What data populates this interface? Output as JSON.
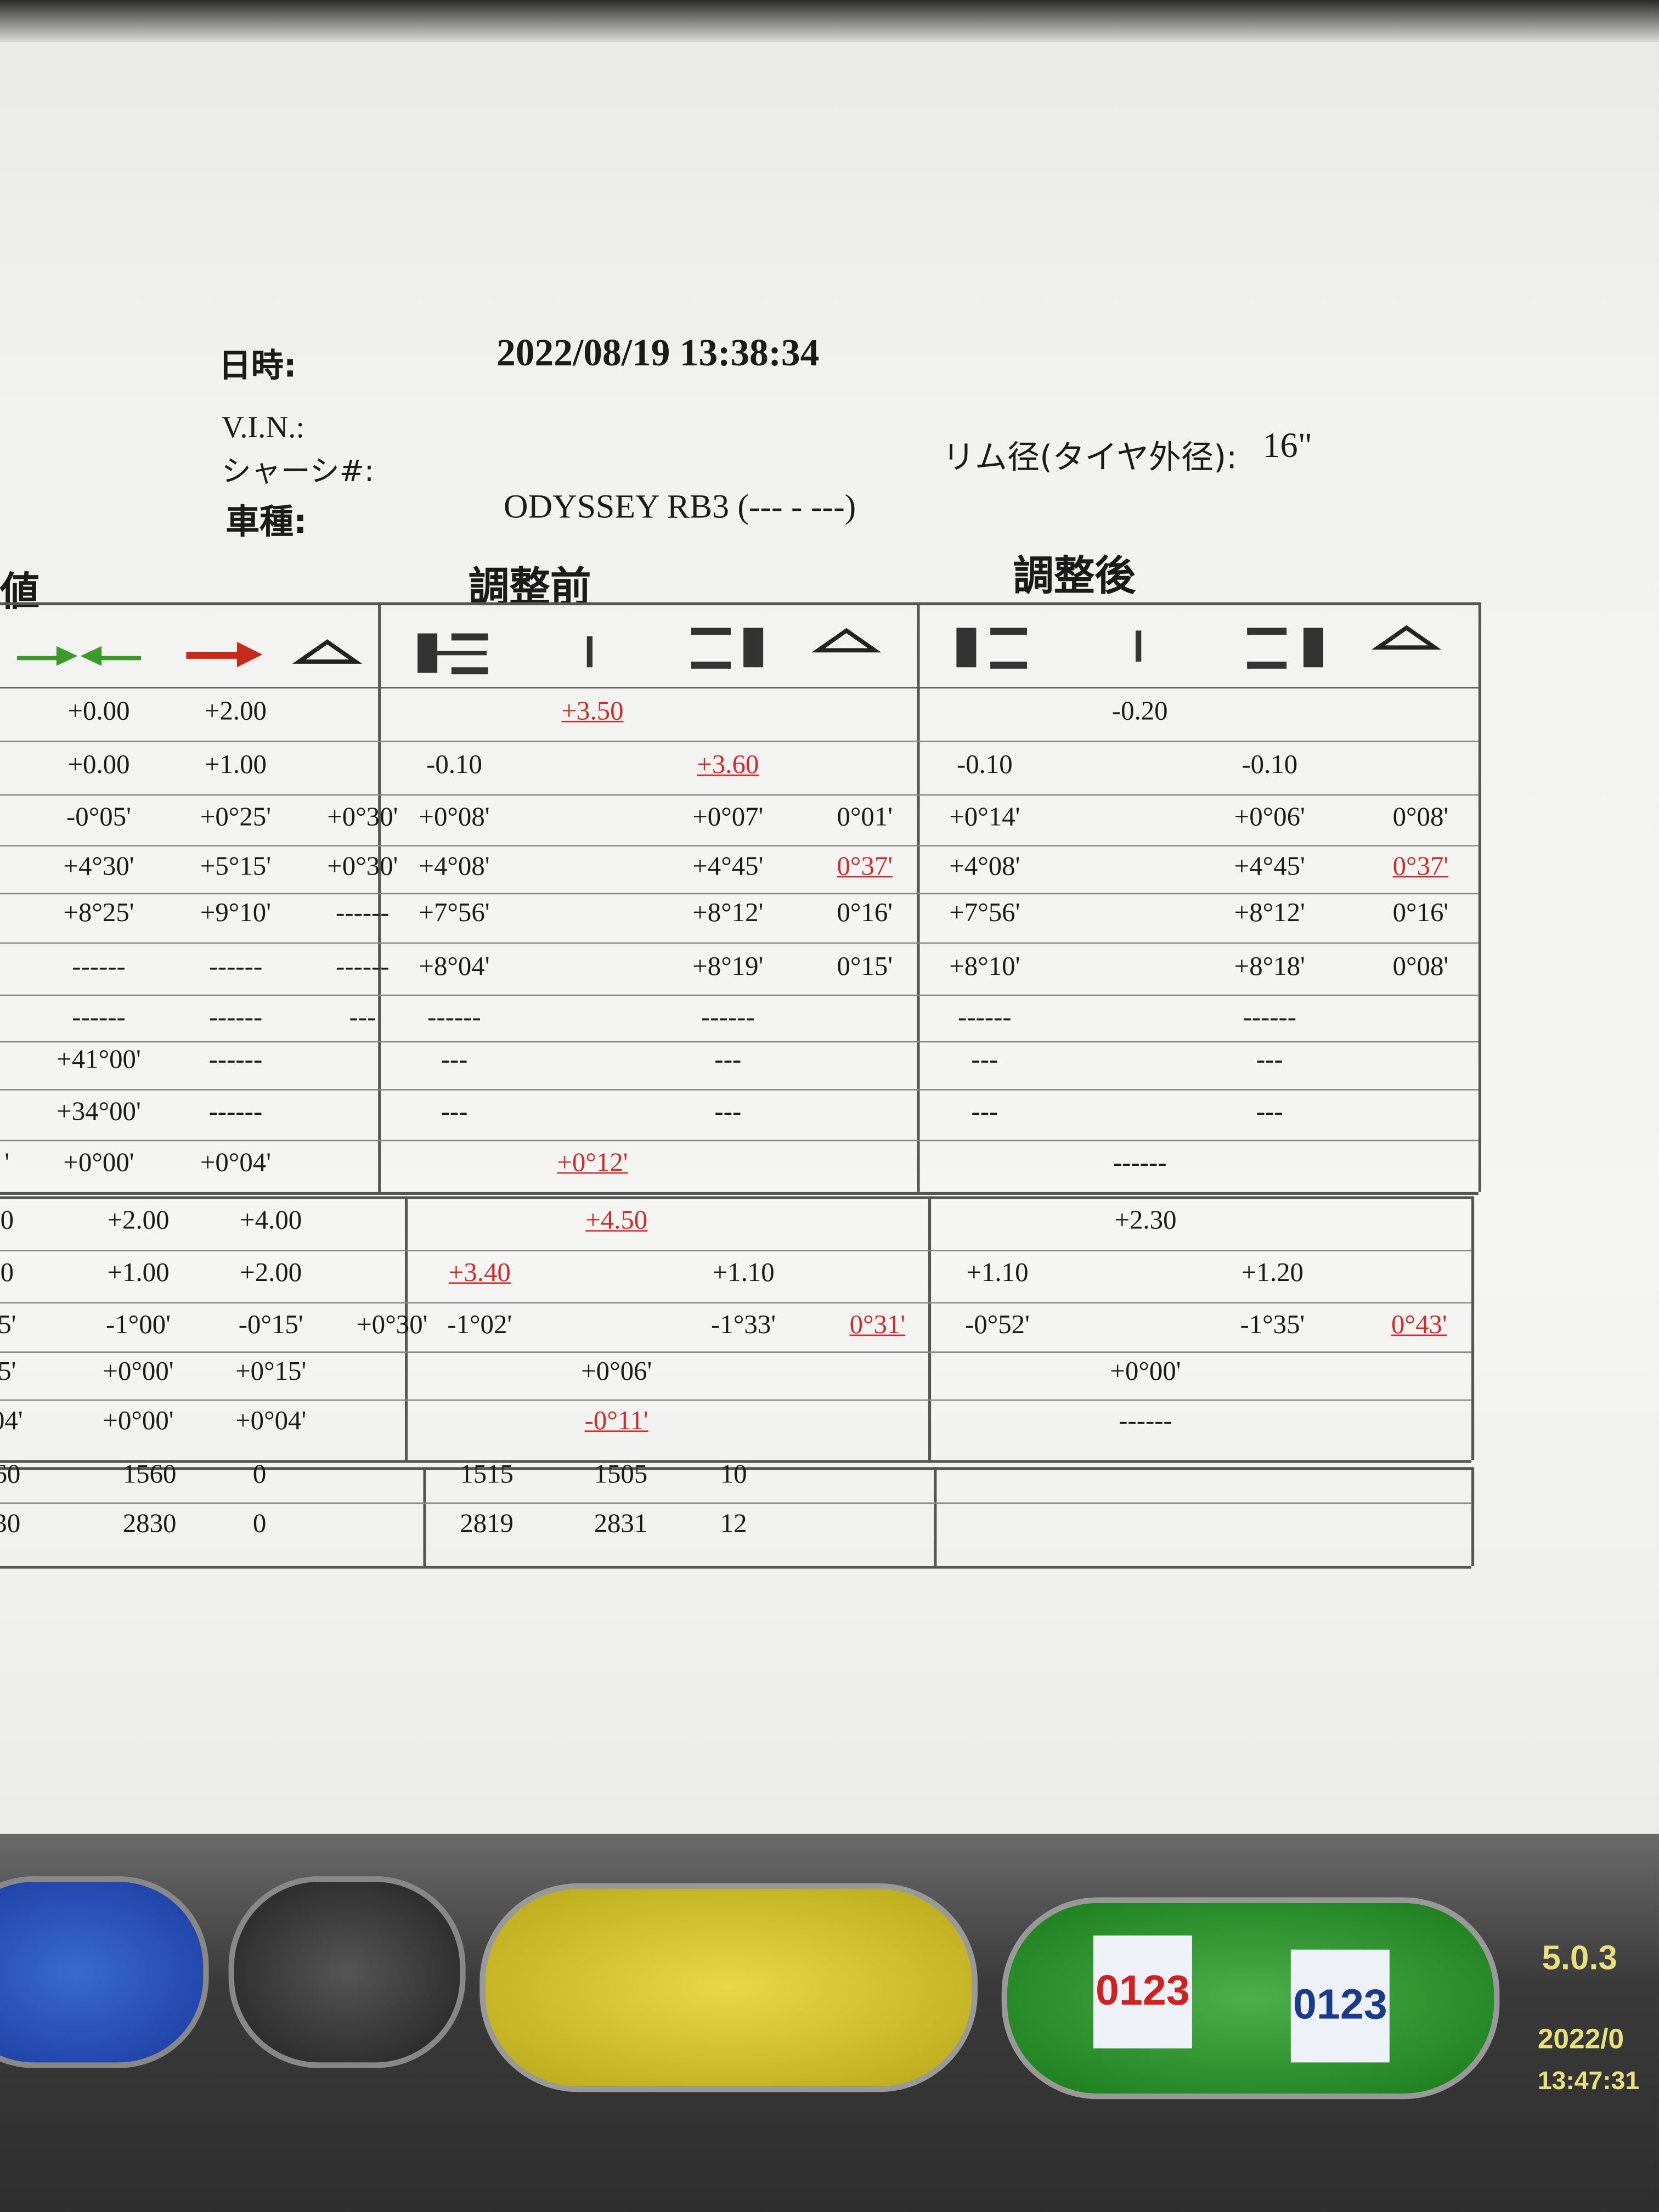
{
  "header": {
    "date_label": "日時:",
    "date_value": "2022/08/19  13:38:34",
    "vin_label": "V.I.N.:",
    "chassis_label": "シャーシ#:",
    "model_label": "車種:",
    "model_value": "ODYSSEY RB3 (--- - ---)",
    "rim_label": "リム径(タイヤ外径):",
    "rim_value": "16\""
  },
  "sections": {
    "spec": "値",
    "before": "調整前",
    "after": "調整後"
  },
  "table": {
    "groups": [
      {
        "rows": [
          {
            "spec": [
              "+0.00",
              "+2.00"
            ],
            "before": {
              "total": {
                "text": "+3.50",
                "color": "#d42a2a"
              }
            },
            "after": {
              "total": "-0.20"
            }
          },
          {
            "spec": [
              "+0.00",
              "+1.00"
            ],
            "before": {
              "left": "-0.10",
              "right": {
                "text": "+3.60",
                "color": "#d42a2a"
              }
            },
            "after": {
              "left": "-0.10",
              "right": "-0.10"
            }
          },
          {
            "spec": [
              "-0°05'",
              "+0°25'",
              "+0°30'"
            ],
            "before": {
              "left": "+0°08'",
              "right": "+0°07'",
              "diff": "0°01'"
            },
            "after": {
              "left": "+0°14'",
              "right": "+0°06'",
              "diff": "0°08'"
            }
          },
          {
            "spec": [
              "+4°30'",
              "+5°15'",
              "+0°30'"
            ],
            "before": {
              "left": "+4°08'",
              "right": "+4°45'",
              "diff": {
                "text": "0°37'",
                "color": "#d42a2a"
              }
            },
            "after": {
              "left": "+4°08'",
              "right": "+4°45'",
              "diff": {
                "text": "0°37'",
                "color": "#d42a2a"
              }
            }
          },
          {
            "spec": [
              "+8°25'",
              "+9°10'",
              "------"
            ],
            "before": {
              "left": "+7°56'",
              "right": "+8°12'",
              "diff": "0°16'"
            },
            "after": {
              "left": "+7°56'",
              "right": "+8°12'",
              "diff": "0°16'"
            }
          },
          {
            "spec": [
              "------",
              "------",
              "------"
            ],
            "before": {
              "left": "+8°04'",
              "right": "+8°19'",
              "diff": "0°15'"
            },
            "after": {
              "left": "+8°10'",
              "right": "+8°18'",
              "diff": "0°08'"
            }
          },
          {
            "spec": [
              "------",
              "------",
              "---"
            ],
            "before": {
              "left": "------",
              "right": "------"
            },
            "after": {
              "left": "------",
              "right": "------"
            }
          },
          {
            "spec": [
              "+41°00'",
              "------"
            ],
            "before": {
              "left": "---",
              "right": "---"
            },
            "after": {
              "left": "---",
              "right": "---"
            }
          },
          {
            "spec": [
              "+34°00'",
              "------"
            ],
            "before": {
              "left": "---",
              "right": "---"
            },
            "after": {
              "left": "---",
              "right": "---"
            }
          },
          {
            "cut": "'",
            "spec": [
              "+0°00'",
              "+0°04'"
            ],
            "before": {
              "total": {
                "text": "+0°12'",
                "color": "#d42a2a"
              }
            },
            "after": {
              "total": "------"
            }
          }
        ]
      },
      {
        "rows": [
          {
            "cut": "0",
            "spec": [
              "+2.00",
              "+4.00"
            ],
            "before": {
              "total": {
                "text": "+4.50",
                "color": "#d42a2a"
              }
            },
            "after": {
              "total": "+2.30"
            }
          },
          {
            "cut": "0",
            "spec": [
              "+1.00",
              "+2.00"
            ],
            "before": {
              "left": {
                "text": "+3.40",
                "color": "#d42a2a"
              },
              "right": "+1.10"
            },
            "after": {
              "left": "+1.10",
              "right": "+1.20"
            }
          },
          {
            "cut": "5'",
            "spec": [
              "-1°00'",
              "-0°15'",
              "+0°30'"
            ],
            "before": {
              "left": "-1°02'",
              "right": "-1°33'",
              "diff": {
                "text": "0°31'",
                "color": "#d42a2a"
              }
            },
            "after": {
              "left": "-0°52'",
              "right": "-1°35'",
              "diff": {
                "text": "0°43'",
                "color": "#d42a2a"
              }
            }
          },
          {
            "cut": "5'",
            "spec": [
              "+0°00'",
              "+0°15'"
            ],
            "before": {
              "total": "+0°06'"
            },
            "after": {
              "total": "+0°00'"
            }
          },
          {
            "cut": "04'",
            "spec": [
              "+0°00'",
              "+0°04'"
            ],
            "before": {
              "total": {
                "text": "-0°11'",
                "color": "#d42a2a"
              }
            },
            "after": {
              "total": "------"
            }
          }
        ]
      },
      {
        "rows": [
          {
            "cut": "60",
            "spec": [
              "1560",
              "0"
            ],
            "before": {
              "left": "1515",
              "total": "1505",
              "right": "10"
            }
          },
          {
            "cut": "30",
            "spec": [
              "2830",
              "0"
            ],
            "before": {
              "left": "2819",
              "total": "2831",
              "right": "12"
            }
          }
        ]
      }
    ]
  },
  "toolbar": {
    "doc_label_red": "0123",
    "doc_label_blue": "0123",
    "version": "5.0.3",
    "date": "2022/0",
    "time": "13:47:31"
  }
}
